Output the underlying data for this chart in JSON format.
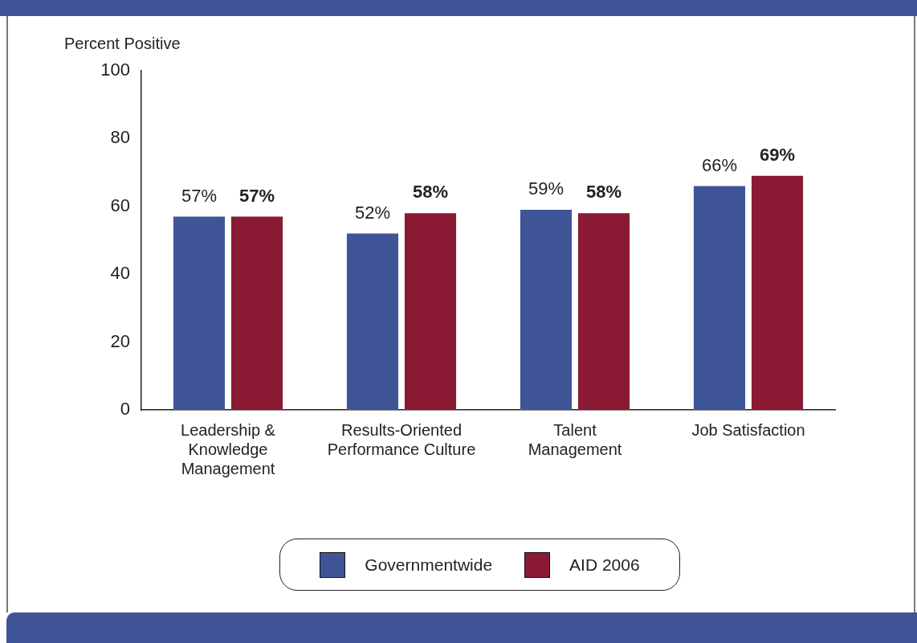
{
  "chart_data": {
    "type": "bar",
    "ylabel": "Percent Positive",
    "categories": [
      "Leadership &\nKnowledge\nManagement",
      "Results-Oriented\nPerformance Culture",
      "Talent\nManagement",
      "Job Satisfaction"
    ],
    "series": [
      {
        "name": "Governmentwide",
        "color": "#3f5597",
        "values": [
          57,
          52,
          59,
          66
        ],
        "value_labels": [
          "57%",
          "52%",
          "59%",
          "66%"
        ]
      },
      {
        "name": "AID 2006",
        "color": "#8a1934",
        "values": [
          57,
          58,
          58,
          69
        ],
        "value_labels": [
          "57%",
          "58%",
          "58%",
          "69%"
        ]
      }
    ],
    "ylim": [
      0,
      100
    ],
    "yticks": [
      0,
      20,
      40,
      60,
      80,
      100
    ],
    "grid": false,
    "legend": "bottom"
  }
}
